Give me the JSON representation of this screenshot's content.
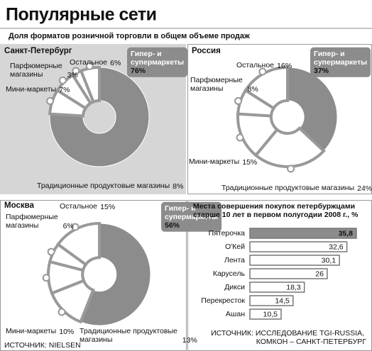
{
  "title": "Популярные сети",
  "subtitle": "Доля форматов розничной торговли в общем объеме продаж",
  "source": "ИСТОЧНИК: NIELSEN",
  "chart_data": [
    {
      "type": "pie",
      "title": "Санкт-Петербург",
      "categories": [
        "Гипер- и супермаркеты",
        "Традиционные продуктовые магазины",
        "Мини-маркеты",
        "Парфюмерные магазины",
        "Остальное"
      ],
      "values": [
        76,
        8,
        7,
        3,
        6
      ],
      "value_labels": [
        "76%",
        "8%",
        "7%",
        "3%",
        "6%"
      ],
      "colors": [
        "#8c8c8c",
        "#ffffff",
        "#ffffff",
        "#ffffff",
        "#ffffff"
      ]
    },
    {
      "type": "pie",
      "title": "Россия",
      "categories": [
        "Гипер- и супермаркеты",
        "Традиционные продуктовые магазины",
        "Мини-маркеты",
        "Парфюмерные магазины",
        "Остальное"
      ],
      "values": [
        37,
        24,
        15,
        8,
        16
      ],
      "value_labels": [
        "37%",
        "24%",
        "15%",
        "8%",
        "16%"
      ],
      "colors": [
        "#8c8c8c",
        "#ffffff",
        "#ffffff",
        "#ffffff",
        "#ffffff"
      ]
    },
    {
      "type": "pie",
      "title": "Москва",
      "categories": [
        "Гипер- и супермаркеты",
        "Традиционные продуктовые магазины",
        "Мини-маркеты",
        "Парфюмерные магазины",
        "Остальное"
      ],
      "values": [
        56,
        13,
        10,
        6,
        15
      ],
      "value_labels": [
        "56%",
        "13%",
        "10%",
        "6%",
        "15%"
      ],
      "colors": [
        "#8c8c8c",
        "#ffffff",
        "#ffffff",
        "#ffffff",
        "#ffffff"
      ]
    },
    {
      "type": "hbar",
      "title": "Места совершения покупок петербуржцами старше 10 лет в первом полугодии 2008 г., %",
      "categories": [
        "Пятерочка",
        "О'Кей",
        "Лента",
        "Карусель",
        "Дикси",
        "Перекресток",
        "Ашан"
      ],
      "values": [
        35.8,
        32.6,
        30.1,
        26,
        18.3,
        14.5,
        10.5
      ],
      "value_labels": [
        "35,8",
        "32,6",
        "30,1",
        "26",
        "18,3",
        "14,5",
        "10,5"
      ],
      "colors": [
        "#8c8c8c",
        "#ffffff",
        "#ffffff",
        "#ffffff",
        "#ffffff",
        "#ffffff",
        "#ffffff"
      ],
      "source": "ИСТОЧНИК: ИССЛЕДОВАНИЕ TGI-RUSSIA, КОМКОН – САНКТ-ПЕТЕРБУРГ"
    }
  ]
}
